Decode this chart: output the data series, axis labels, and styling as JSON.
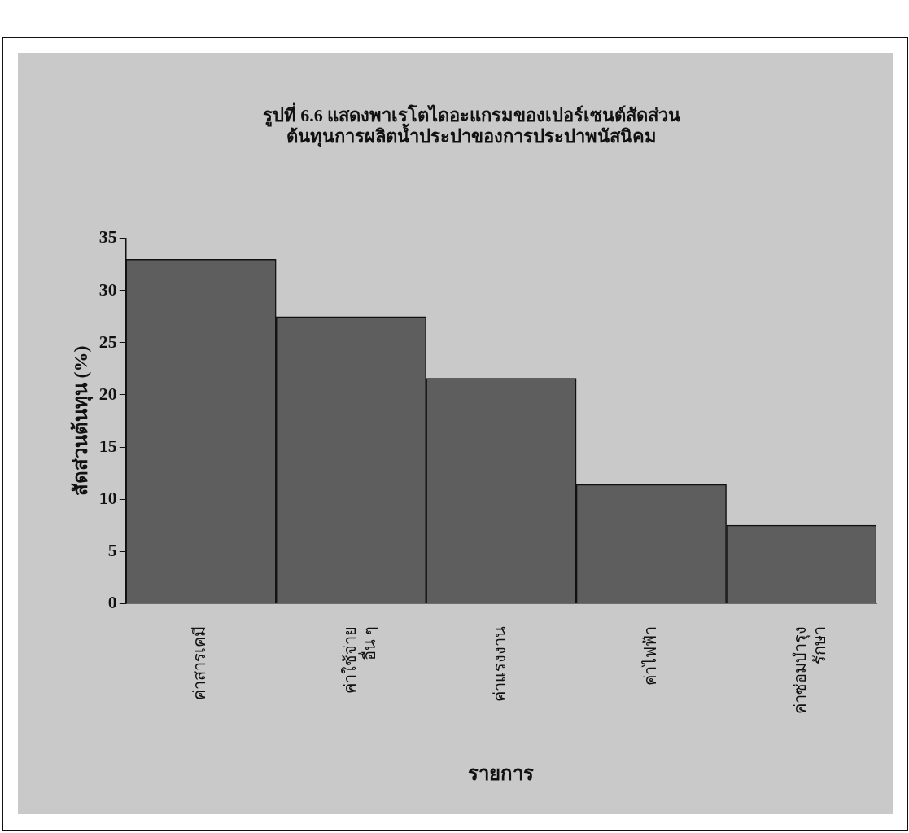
{
  "chart_data": {
    "type": "bar",
    "title": "รูปที่ 6.6 แสดงพาเรโตไดอะแกรมของเปอร์เซนต์สัดส่วน\nต้นทุนการผลิตน้ำประปาของการประปาพนัสนิคม",
    "categories": [
      "ค่าสารเคมี",
      "ค่าใช้จ่าย\nอื่น ๆ",
      "ค่าแรงงาน",
      "ค่าไฟฟ้า",
      "ค่าซ่อมบำรุง\nรักษา"
    ],
    "values": [
      33,
      27.5,
      21.6,
      11.4,
      7.5
    ],
    "color": "#5e5e5e",
    "xlabel": "รายการ",
    "ylabel": "สัดส่วนต้นทุน (%)",
    "ylim": [
      0,
      35
    ],
    "yticks": [
      0,
      5,
      10,
      15,
      20,
      25,
      30,
      35
    ],
    "grid": false,
    "legend": false
  }
}
